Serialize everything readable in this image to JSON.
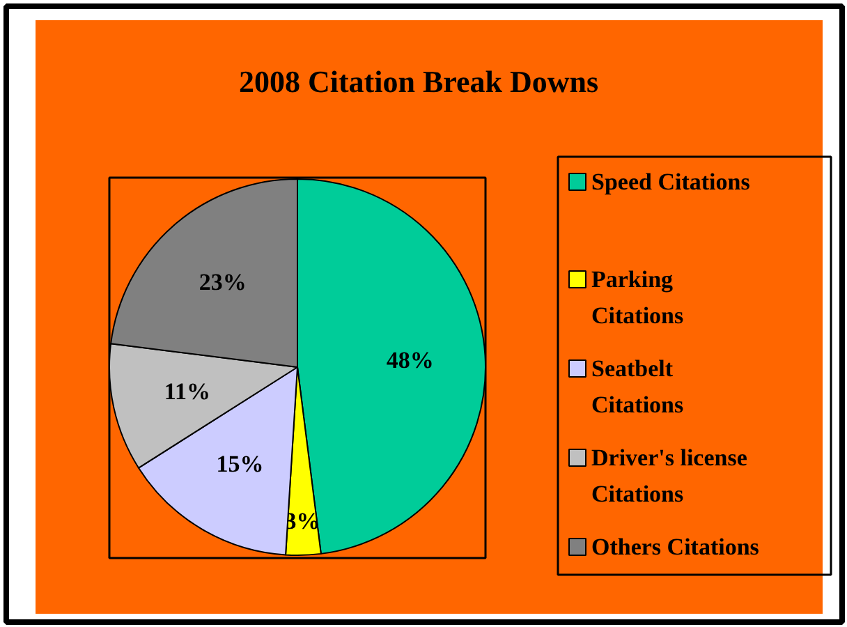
{
  "chart_data": {
    "type": "pie",
    "title": "2008 Citation Break Downs",
    "categories": [
      "Speed Citations",
      "Parking Citations",
      "Seatbelt Citations",
      "Driver's license Citations",
      "Others Citations"
    ],
    "values": [
      48,
      3,
      15,
      11,
      23
    ],
    "colors": [
      "#00cc99",
      "#ffff00",
      "#ccccff",
      "#c0c0c0",
      "#808080"
    ],
    "value_labels": [
      "48%",
      "3%",
      "15%",
      "11%",
      "23%"
    ],
    "legend": "right"
  }
}
